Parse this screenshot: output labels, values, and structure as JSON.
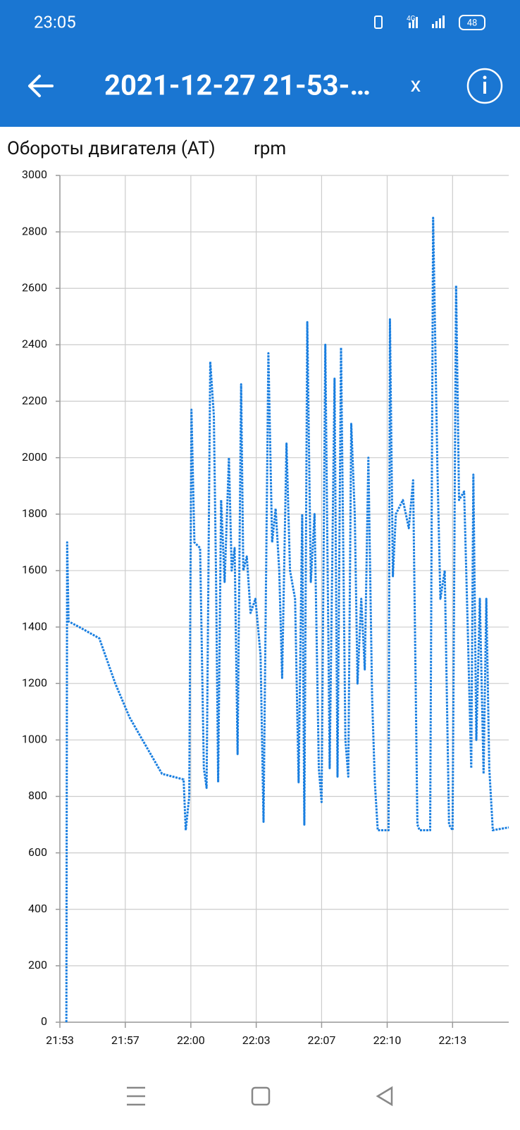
{
  "status_bar": {
    "time": "23:05",
    "battery": "48",
    "network": "4G"
  },
  "header": {
    "title": "2021-12-27 21-53-…",
    "close": "x"
  },
  "chart_data": {
    "type": "line",
    "title": "Обороты двигателя (AT)",
    "unit": "rpm",
    "x": [
      1313.33,
      1313.37,
      1313.44,
      1313.99,
      1315.01,
      1315.82,
      1316.55,
      1317.29,
      1318.2,
      1319.3,
      1319.41,
      1319.59,
      1319.7,
      1319.85,
      1320.14,
      1320.33,
      1320.47,
      1320.66,
      1320.84,
      1320.95,
      1321.06,
      1321.21,
      1321.39,
      1321.61,
      1321.75,
      1321.9,
      1322.05,
      1322.23,
      1322.34,
      1322.52,
      1322.71,
      1322.96,
      1323.22,
      1323.37,
      1323.62,
      1323.81,
      1323.99,
      1324.17,
      1324.32,
      1324.54,
      1324.72,
      1324.98,
      1325.16,
      1325.34,
      1325.45,
      1325.6,
      1325.78,
      1325.97,
      1326.19,
      1326.33,
      1326.52,
      1326.74,
      1326.99,
      1327.14,
      1327.32,
      1327.54,
      1327.69,
      1327.84,
      1328.02,
      1328.16,
      1328.35,
      1328.53,
      1328.71,
      1328.9,
      1329.04,
      1329.19,
      1329.74,
      1329.81,
      1329.96,
      1330.11,
      1330.47,
      1330.77,
      1330.99,
      1331.21,
      1331.32,
      1331.86,
      1332.01,
      1332.23,
      1332.38,
      1332.6,
      1332.82,
      1333.0,
      1333.18,
      1333.33,
      1333.59,
      1333.77,
      1333.95,
      1334.06,
      1334.21,
      1334.39,
      1334.58,
      1334.72,
      1334.87,
      1335.05,
      1335.86
    ],
    "series": [
      {
        "name": "rpm",
        "color": "#1a7fe0",
        "values": [
          0,
          1700,
          1420,
          1400,
          1360,
          1200,
          1080,
          990,
          880,
          860,
          680,
          800,
          2170,
          1700,
          1680,
          900,
          830,
          2340,
          2150,
          1600,
          850,
          1850,
          1560,
          2000,
          1600,
          1680,
          950,
          2260,
          1600,
          1650,
          1450,
          1500,
          1300,
          710,
          2370,
          1700,
          1820,
          1600,
          1220,
          2050,
          1600,
          1500,
          850,
          1800,
          700,
          2480,
          1560,
          1800,
          900,
          780,
          2400,
          900,
          2280,
          870,
          2390,
          1000,
          870,
          2120,
          1800,
          1200,
          1500,
          1250,
          2000,
          1150,
          850,
          680,
          680,
          2490,
          1580,
          1800,
          1850,
          1750,
          1920,
          700,
          680,
          680,
          2850,
          1960,
          1500,
          1600,
          700,
          680,
          2610,
          1850,
          1880,
          1400,
          900,
          1940,
          1000,
          1500,
          880,
          1500,
          900,
          680,
          690
        ]
      }
    ],
    "xlim": [
      1313,
      1335.86
    ],
    "xticks": [
      {
        "value": 1313,
        "label": "21:53"
      },
      {
        "value": 1316.33,
        "label": "21:57"
      },
      {
        "value": 1319.67,
        "label": "22:00"
      },
      {
        "value": 1323,
        "label": "22:03"
      },
      {
        "value": 1326.33,
        "label": "22:07"
      },
      {
        "value": 1329.67,
        "label": "22:10"
      },
      {
        "value": 1333,
        "label": "22:13"
      }
    ],
    "ylim": [
      0,
      3000
    ],
    "yticks": [
      0,
      200,
      400,
      600,
      800,
      1000,
      1200,
      1400,
      1600,
      1800,
      2000,
      2200,
      2400,
      2600,
      2800,
      3000
    ],
    "grid": true
  }
}
